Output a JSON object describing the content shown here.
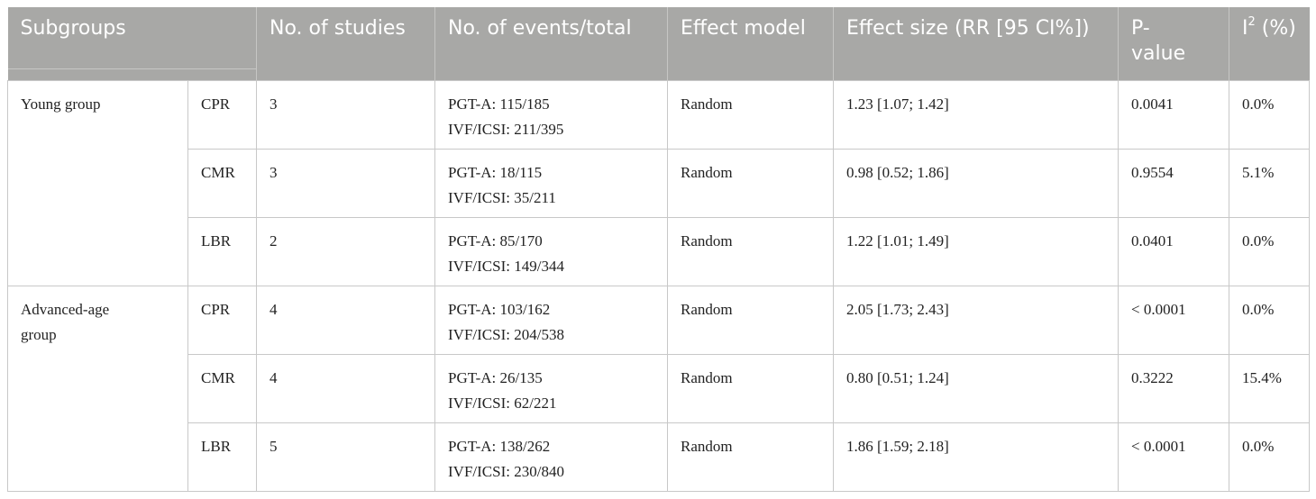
{
  "headers": {
    "subgroups": "Subgroups",
    "studies": "No. of studies",
    "events": "No. of events/total",
    "model": "Effect model",
    "effect": "Effect size (RR [95 CI%])",
    "pvalue_a": "P-",
    "pvalue_b": "value",
    "i2_base": "I",
    "i2_sup": "2",
    "i2_rest": " (%)"
  },
  "groups": [
    {
      "name": "Young group",
      "rows": [
        {
          "outcome": "CPR",
          "studies": "3",
          "pgt": "PGT-A: 115/185",
          "ivf": "IVF/ICSI: 211/395",
          "model": "Random",
          "effect": "1.23 [1.07; 1.42]",
          "p": "0.0041",
          "i2": "0.0%"
        },
        {
          "outcome": "CMR",
          "studies": "3",
          "pgt": "PGT-A: 18/115",
          "ivf": "IVF/ICSI: 35/211",
          "model": "Random",
          "effect": "0.98 [0.52; 1.86]",
          "p": "0.9554",
          "i2": "5.1%"
        },
        {
          "outcome": "LBR",
          "studies": "2",
          "pgt": "PGT-A: 85/170",
          "ivf": "IVF/ICSI: 149/344",
          "model": "Random",
          "effect": "1.22 [1.01; 1.49]",
          "p": "0.0401",
          "i2": "0.0%"
        }
      ]
    },
    {
      "name_line1": "Advanced-age",
      "name_line2": "group",
      "rows": [
        {
          "outcome": "CPR",
          "studies": "4",
          "pgt": "PGT-A: 103/162",
          "ivf": "IVF/ICSI: 204/538",
          "model": "Random",
          "effect": "2.05 [1.73; 2.43]",
          "p": "< 0.0001",
          "i2": "0.0%"
        },
        {
          "outcome": "CMR",
          "studies": "4",
          "pgt": "PGT-A: 26/135",
          "ivf": "IVF/ICSI: 62/221",
          "model": "Random",
          "effect": "0.80 [0.51; 1.24]",
          "p": "0.3222",
          "i2": "15.4%"
        },
        {
          "outcome": "LBR",
          "studies": "5",
          "pgt": "PGT-A: 138/262",
          "ivf": "IVF/ICSI: 230/840",
          "model": "Random",
          "effect": "1.86 [1.59; 2.18]",
          "p": "< 0.0001",
          "i2": "0.0%"
        }
      ]
    }
  ]
}
